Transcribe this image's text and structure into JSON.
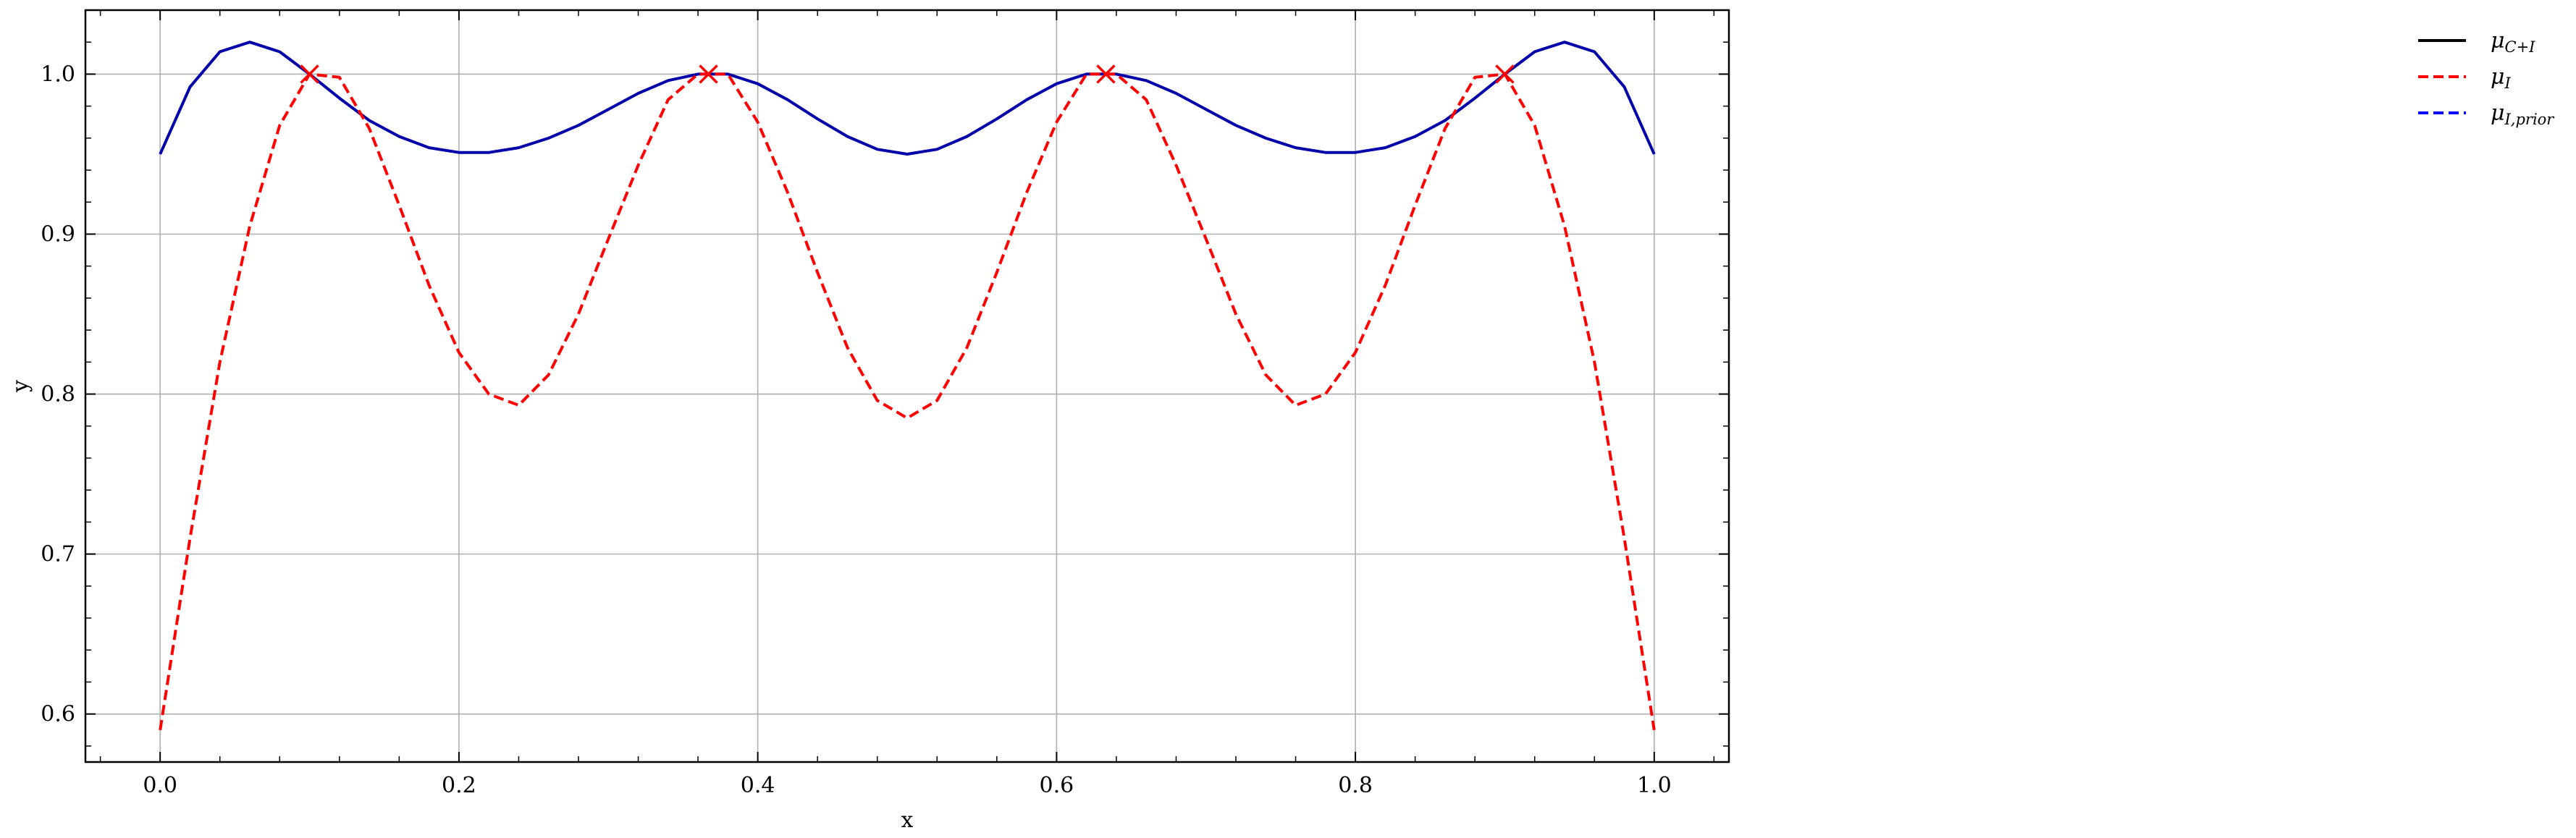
{
  "chart_data": {
    "type": "line",
    "title": "",
    "xlabel": "x",
    "ylabel": "y",
    "xlim": [
      -0.05,
      1.05
    ],
    "ylim": [
      0.57,
      1.04
    ],
    "xticks": [
      0.0,
      0.2,
      0.4,
      0.6,
      0.8,
      1.0
    ],
    "xtick_labels": [
      "0.0",
      "0.2",
      "0.4",
      "0.6",
      "0.8",
      "1.0"
    ],
    "yticks": [
      0.6,
      0.7,
      0.8,
      0.9,
      1.0
    ],
    "ytick_labels": [
      "0.6",
      "0.7",
      "0.8",
      "0.9",
      "1.0"
    ],
    "grid": true,
    "legend_position": "outside top-right",
    "colors": {
      "solid_black": "#000000",
      "dashed_red": "#ff0000",
      "dashed_blue": "#0000ff",
      "solid_visible": "#0000aa",
      "marker": "#ff0000"
    },
    "legend": [
      {
        "id": "mu_ci",
        "symbol": "μ",
        "subscript": "C+I",
        "style": "solid",
        "color": "#000000"
      },
      {
        "id": "mu_i",
        "symbol": "μ",
        "subscript": "I",
        "style": "dashed",
        "color": "#ff0000"
      },
      {
        "id": "mu_i_prior",
        "symbol": "μ",
        "subscript": "I,prior",
        "style": "dashed",
        "color": "#0000ff"
      }
    ],
    "series": [
      {
        "id": "mu_ci",
        "style": "solid",
        "color": "#0000aa",
        "x": [
          0.0,
          0.02,
          0.04,
          0.06,
          0.08,
          0.1,
          0.12,
          0.14,
          0.16,
          0.18,
          0.2,
          0.22,
          0.24,
          0.26,
          0.28,
          0.3,
          0.32,
          0.34,
          0.36,
          0.38,
          0.4,
          0.42,
          0.44,
          0.46,
          0.48,
          0.5,
          0.52,
          0.54,
          0.56,
          0.58,
          0.6,
          0.62,
          0.64,
          0.66,
          0.68,
          0.7,
          0.72,
          0.74,
          0.76,
          0.78,
          0.8,
          0.82,
          0.84,
          0.86,
          0.88,
          0.9,
          0.92,
          0.94,
          0.96,
          0.98,
          1.0
        ],
        "y": [
          0.95,
          0.992,
          1.014,
          1.02,
          1.014,
          1.0,
          0.985,
          0.971,
          0.961,
          0.954,
          0.951,
          0.951,
          0.954,
          0.96,
          0.968,
          0.978,
          0.988,
          0.996,
          1.0,
          1.0,
          0.994,
          0.984,
          0.972,
          0.961,
          0.953,
          0.95,
          0.953,
          0.961,
          0.972,
          0.984,
          0.994,
          1.0,
          1.0,
          0.996,
          0.988,
          0.978,
          0.968,
          0.96,
          0.954,
          0.951,
          0.951,
          0.954,
          0.961,
          0.971,
          0.985,
          1.0,
          1.014,
          1.02,
          1.014,
          0.992,
          0.95
        ]
      },
      {
        "id": "mu_i",
        "style": "dashed",
        "color": "#ff0000",
        "x": [
          0.0,
          0.02,
          0.04,
          0.06,
          0.08,
          0.1,
          0.12,
          0.14,
          0.16,
          0.18,
          0.2,
          0.22,
          0.24,
          0.26,
          0.28,
          0.3,
          0.32,
          0.34,
          0.36,
          0.38,
          0.4,
          0.42,
          0.44,
          0.46,
          0.48,
          0.5,
          0.52,
          0.54,
          0.56,
          0.58,
          0.6,
          0.62,
          0.64,
          0.66,
          0.68,
          0.7,
          0.72,
          0.74,
          0.76,
          0.78,
          0.8,
          0.82,
          0.84,
          0.86,
          0.88,
          0.9,
          0.92,
          0.94,
          0.96,
          0.98,
          1.0
        ],
        "y": [
          0.59,
          0.71,
          0.82,
          0.905,
          0.968,
          1.0,
          0.998,
          0.966,
          0.918,
          0.868,
          0.826,
          0.8,
          0.793,
          0.812,
          0.85,
          0.897,
          0.943,
          0.984,
          1.0,
          1.0,
          0.97,
          0.926,
          0.876,
          0.829,
          0.796,
          0.785,
          0.796,
          0.829,
          0.876,
          0.926,
          0.97,
          1.0,
          1.0,
          0.984,
          0.943,
          0.897,
          0.85,
          0.812,
          0.793,
          0.8,
          0.826,
          0.868,
          0.918,
          0.966,
          0.998,
          1.0,
          0.968,
          0.905,
          0.82,
          0.71,
          0.59
        ]
      }
    ],
    "markers": {
      "symbol": "x",
      "color": "#ff0000",
      "x": [
        0.1,
        0.367,
        0.633,
        0.9
      ],
      "y": [
        1.0,
        1.0,
        1.0,
        1.0
      ]
    }
  }
}
